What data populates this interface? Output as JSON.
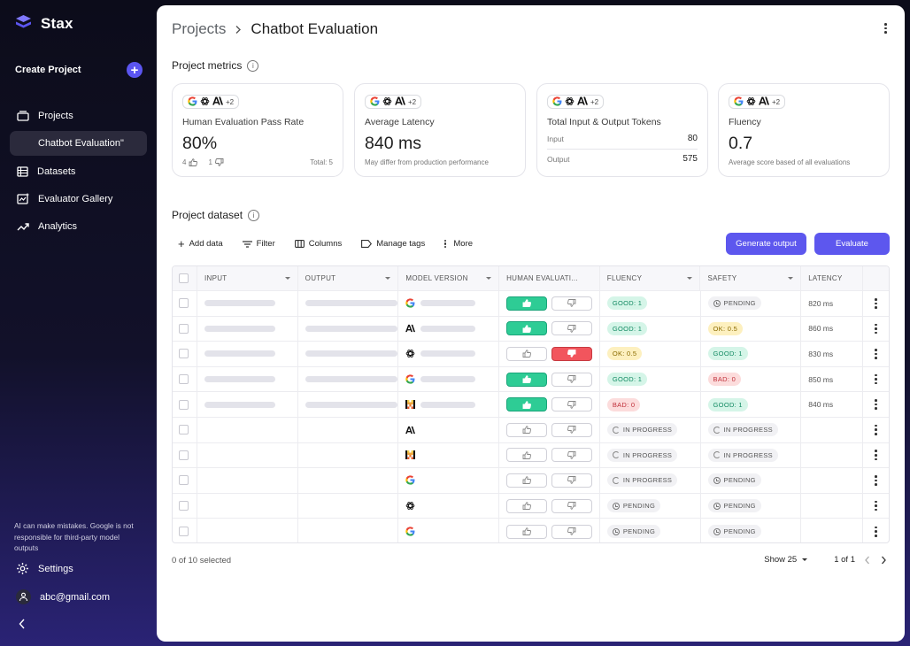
{
  "sidebar": {
    "brand": "Stax",
    "create_project": "Create Project",
    "items": [
      {
        "label": "Projects",
        "icon": "folder-icon"
      },
      {
        "label": "Chatbot Evaluation\"",
        "icon": ""
      },
      {
        "label": "Datasets",
        "icon": "table-icon"
      },
      {
        "label": "Evaluator Gallery",
        "icon": "chart-spark-icon"
      },
      {
        "label": "Analytics",
        "icon": "trending-icon"
      }
    ],
    "disclaimer": "AI can make mistakes. Google is not responsible for third-party model outputs",
    "settings": "Settings",
    "account": "abc@gmail.com"
  },
  "header": {
    "breadcrumb_root": "Projects",
    "breadcrumb_current": "Chatbot Evaluation"
  },
  "metrics": {
    "title": "Project metrics",
    "chip_extra": "+2",
    "cards": [
      {
        "label": "Human Evaluation Pass Rate",
        "value": "80%",
        "up_count": "4",
        "down_count": "1",
        "total": "Total: 5"
      },
      {
        "label": "Average Latency",
        "value": "840 ms",
        "sub": "May differ from production performance"
      },
      {
        "label": "Total Input & Output Tokens",
        "input_label": "Input",
        "input_value": "80",
        "output_label": "Output",
        "output_value": "575"
      },
      {
        "label": "Fluency",
        "value": "0.7",
        "sub": "Average score based of all evaluations"
      }
    ]
  },
  "dataset": {
    "title": "Project dataset",
    "toolbar": {
      "add_data": "Add data",
      "filter": "Filter",
      "columns": "Columns",
      "manage_tags": "Manage tags",
      "more": "More",
      "generate_output": "Generate output",
      "evaluate": "Evaluate"
    },
    "columns": [
      "INPUT",
      "OUTPUT",
      "MODEL VERSION",
      "HUMAN EVALUATI...",
      "FLUENCY",
      "SAFETY",
      "LATENCY"
    ],
    "rows": [
      {
        "has_io": true,
        "model": "google",
        "vote": "up",
        "fluency": "GOOD: 1",
        "fluency_kind": "good",
        "safety": "PENDING",
        "safety_kind": "pending",
        "latency": "820 ms"
      },
      {
        "has_io": true,
        "model": "anthropic",
        "vote": "up",
        "fluency": "GOOD: 1",
        "fluency_kind": "good",
        "safety": "OK: 0.5",
        "safety_kind": "ok",
        "latency": "860 ms"
      },
      {
        "has_io": true,
        "model": "openai",
        "vote": "down",
        "fluency": "OK: 0.5",
        "fluency_kind": "ok",
        "safety": "GOOD: 1",
        "safety_kind": "good",
        "latency": "830 ms"
      },
      {
        "has_io": true,
        "model": "google",
        "vote": "up",
        "fluency": "GOOD: 1",
        "fluency_kind": "good",
        "safety": "BAD: 0",
        "safety_kind": "bad",
        "latency": "850 ms"
      },
      {
        "has_io": true,
        "model": "mistral",
        "vote": "up",
        "fluency": "BAD: 0",
        "fluency_kind": "bad",
        "safety": "GOOD: 1",
        "safety_kind": "good",
        "latency": "840 ms"
      },
      {
        "has_io": false,
        "model": "anthropic",
        "vote": "none",
        "fluency": "IN PROGRESS",
        "fluency_kind": "progress",
        "safety": "IN PROGRESS",
        "safety_kind": "progress",
        "latency": ""
      },
      {
        "has_io": false,
        "model": "mistral",
        "vote": "none",
        "fluency": "IN PROGRESS",
        "fluency_kind": "progress",
        "safety": "IN PROGRESS",
        "safety_kind": "progress",
        "latency": ""
      },
      {
        "has_io": false,
        "model": "google",
        "vote": "none",
        "fluency": "IN PROGRESS",
        "fluency_kind": "progress",
        "safety": "PENDING",
        "safety_kind": "pending",
        "latency": ""
      },
      {
        "has_io": false,
        "model": "openai",
        "vote": "none",
        "fluency": "PENDING",
        "fluency_kind": "pending",
        "safety": "PENDING",
        "safety_kind": "pending",
        "latency": ""
      },
      {
        "has_io": false,
        "model": "google",
        "vote": "none",
        "fluency": "PENDING",
        "fluency_kind": "pending",
        "safety": "PENDING",
        "safety_kind": "pending",
        "latency": ""
      }
    ],
    "selected": "0 of 10 selected",
    "show": "Show 25",
    "page": "1 of 1"
  },
  "colors": {
    "accent": "#5d57ee",
    "good": "#2ecc95",
    "bad": "#f2555d"
  }
}
